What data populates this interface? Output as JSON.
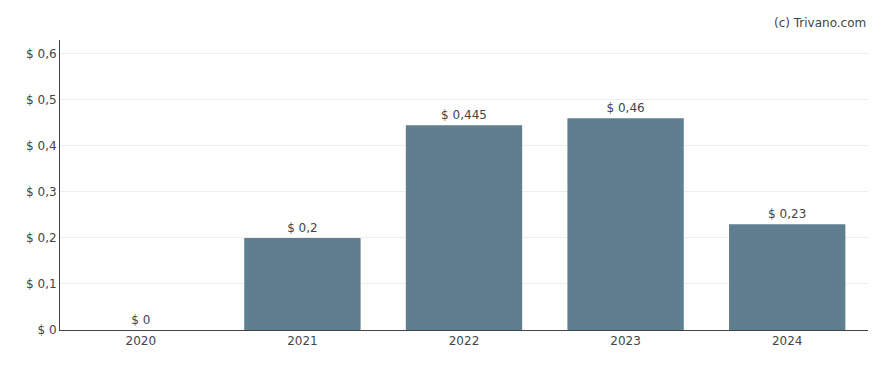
{
  "chart_data": {
    "type": "bar",
    "categories": [
      "2020",
      "2021",
      "2022",
      "2023",
      "2024"
    ],
    "values": [
      0.0,
      0.2,
      0.445,
      0.46,
      0.23
    ],
    "value_labels": [
      "$ 0",
      "$ 0,2",
      "$ 0,445",
      "$ 0,46",
      "$ 0,23"
    ],
    "data_labels": true,
    "color": "#5f7f90",
    "ylim": [
      0,
      0.63
    ],
    "yticks": [
      {
        "value": 0.0,
        "label": "$ 0"
      },
      {
        "value": 0.1,
        "label": "$ 0,1"
      },
      {
        "value": 0.2,
        "label": "$ 0,2"
      },
      {
        "value": 0.3,
        "label": "$ 0,3"
      },
      {
        "value": 0.4,
        "label": "$ 0,4"
      },
      {
        "value": 0.5,
        "label": "$ 0,5"
      },
      {
        "value": 0.6,
        "label": "$ 0,6"
      }
    ],
    "grid": true,
    "annotations": [
      {
        "text": "(c) Trivano.com"
      }
    ]
  }
}
